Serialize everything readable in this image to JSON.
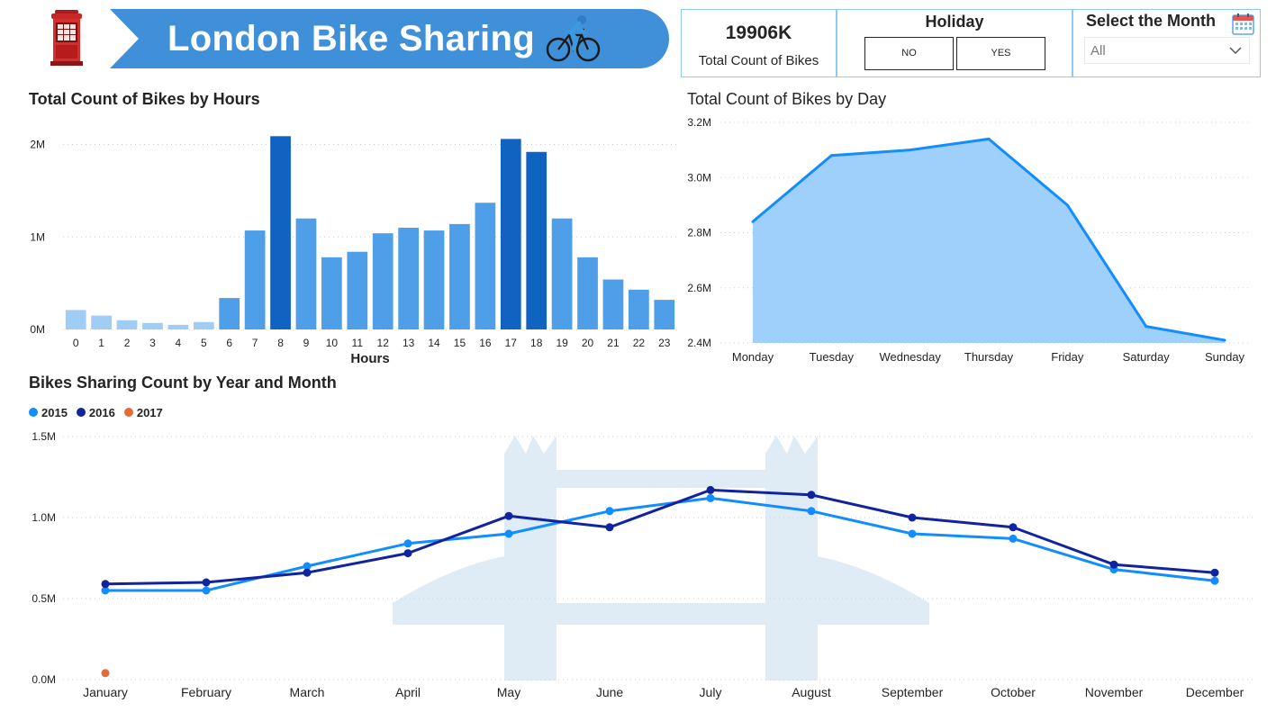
{
  "header": {
    "title": "London Bike Sharing",
    "banner_color": "#3f8fd9"
  },
  "kpi": {
    "value": "19906K",
    "label": "Total Count of Bikes"
  },
  "holiday_slicer": {
    "title": "Holiday",
    "options": [
      "NO",
      "YES"
    ]
  },
  "month_slicer": {
    "title": "Select the Month",
    "selected": "All"
  },
  "charts": {
    "hours_title": "Total Count of Bikes by Hours",
    "day_title": "Total Count of Bikes by Day",
    "month_title": "Bikes Sharing Count by Year and Month"
  },
  "chart_data": [
    {
      "type": "bar",
      "title": "Total Count of Bikes by Hours",
      "xlabel": "Hours",
      "ylabel": "",
      "categories": [
        "0",
        "1",
        "2",
        "3",
        "4",
        "5",
        "6",
        "7",
        "8",
        "9",
        "10",
        "11",
        "12",
        "13",
        "14",
        "15",
        "16",
        "17",
        "18",
        "19",
        "20",
        "21",
        "22",
        "23"
      ],
      "values": [
        0.21,
        0.15,
        0.1,
        0.07,
        0.05,
        0.08,
        0.34,
        1.07,
        2.09,
        1.2,
        0.78,
        0.84,
        1.04,
        1.1,
        1.07,
        1.14,
        1.37,
        2.06,
        1.92,
        1.2,
        0.78,
        0.54,
        0.43,
        0.32
      ],
      "value_unit": "M",
      "ylim": [
        0,
        2.2
      ],
      "yticks": [
        "0M",
        "1M",
        "2M"
      ],
      "grid": true,
      "colors": {
        "low": "#a0cdf6",
        "mid": "#4f9ee8",
        "high": "#1163c2"
      }
    },
    {
      "type": "area",
      "title": "Total Count of Bikes by Day",
      "categories": [
        "Monday",
        "Tuesday",
        "Wednesday",
        "Thursday",
        "Friday",
        "Saturday",
        "Sunday"
      ],
      "values": [
        2.84,
        3.08,
        3.1,
        3.14,
        2.9,
        2.46,
        2.41
      ],
      "value_unit": "M",
      "ylim": [
        2.4,
        3.2
      ],
      "yticks": [
        "2.4M",
        "2.6M",
        "2.8M",
        "3.0M",
        "3.2M"
      ],
      "grid": true,
      "colors": {
        "line": "#118dff",
        "fill": "#9fcffb"
      }
    },
    {
      "type": "line",
      "title": "Bikes Sharing Count by Year and Month",
      "categories": [
        "January",
        "February",
        "March",
        "April",
        "May",
        "June",
        "July",
        "August",
        "September",
        "October",
        "November",
        "December"
      ],
      "series": [
        {
          "name": "2015",
          "color": "#118dff",
          "values": [
            0.55,
            0.55,
            0.7,
            0.84,
            0.9,
            1.04,
            1.12,
            1.04,
            0.9,
            0.87,
            0.68,
            0.61
          ]
        },
        {
          "name": "2016",
          "color": "#12239e",
          "values": [
            0.59,
            0.6,
            0.66,
            0.78,
            1.01,
            0.94,
            1.17,
            1.14,
            1.0,
            0.94,
            0.71,
            0.66
          ]
        },
        {
          "name": "2017",
          "color": "#e66c37",
          "values": [
            0.04,
            null,
            null,
            null,
            null,
            null,
            null,
            null,
            null,
            null,
            null,
            null
          ]
        }
      ],
      "value_unit": "M",
      "ylim": [
        0,
        1.5
      ],
      "yticks": [
        "0.0M",
        "0.5M",
        "1.0M",
        "1.5M"
      ],
      "grid": true,
      "legend": "top-left"
    }
  ]
}
